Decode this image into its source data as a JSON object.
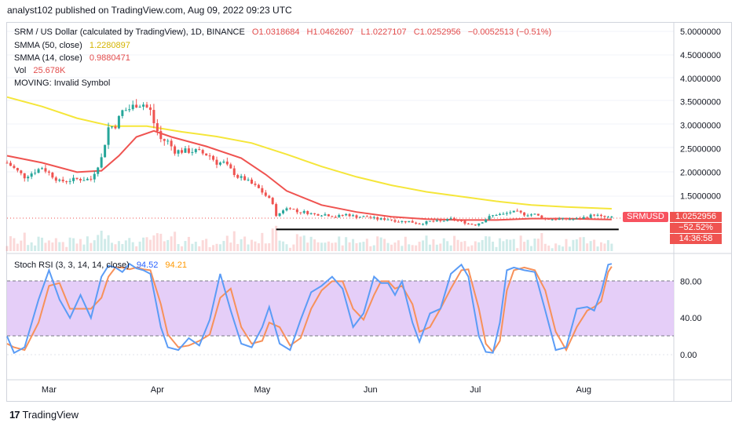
{
  "header": {
    "publisher": "analyst102 published on TradingView.com, Aug 09, 2022 09:23 UTC"
  },
  "legend": {
    "title": "SRM / US Dollar (calculated by TradingView), 1D, BINANCE",
    "open": "O1.0318684",
    "high": "H1.0462607",
    "low": "L1.0227107",
    "close": "C1.0252956",
    "change": "−0.0052513 (−0.51%)",
    "sma50_label": "SMMA (50, close)",
    "sma50_value": "1.2280897",
    "sma14_label": "SMMA (14, close)",
    "sma14_value": "0.9880471",
    "vol_label": "Vol",
    "vol_value": "25.678K",
    "moving_label": "MOVING: Invalid Symbol"
  },
  "stoch": {
    "label": "Stoch RSI (3, 3, 14, 14, close)",
    "k_value": "94.52",
    "d_value": "94.21"
  },
  "price_tag": {
    "symbol": "SRMUSD",
    "price": "1.0252956",
    "change": "−52.52%",
    "countdown": "14:36:58"
  },
  "footer": {
    "brand": "TradingView",
    "logo_text": "17"
  },
  "colors": {
    "up": "#26a69a",
    "down": "#ef5350",
    "sma50": "#f5e63a",
    "sma14": "#ef5350",
    "stoch_k": "#5b9cf6",
    "stoch_d": "#f7915a",
    "band": "#e1c5f7"
  },
  "chart_data": [
    {
      "type": "line",
      "title": "SRM / US Dollar (calculated by TradingView), 1D, BINANCE",
      "y_ticks": [
        "5.0000000",
        "4.5000000",
        "4.0000000",
        "3.5000000",
        "3.0000000",
        "2.5000000",
        "2.0000000",
        "1.5000000"
      ],
      "ylim": [
        0.35,
        5.1
      ],
      "x_ticks": [
        "Mar",
        "Apr",
        "May",
        "Jun",
        "Jul",
        "Aug"
      ],
      "x_tick_days": [
        12,
        43,
        73,
        104,
        134,
        165
      ],
      "series": [
        {
          "name": "Price",
          "points": [
            [
              0,
              2.2
            ],
            [
              5,
              1.9
            ],
            [
              10,
              2.1
            ],
            [
              15,
              1.8
            ],
            [
              20,
              1.85
            ],
            [
              24,
              1.85
            ],
            [
              27,
              2.3
            ],
            [
              29,
              2.95
            ],
            [
              31,
              3.0
            ],
            [
              33,
              3.3
            ],
            [
              35,
              3.35
            ],
            [
              37,
              3.45
            ],
            [
              39,
              3.45
            ],
            [
              41,
              3.3
            ],
            [
              42,
              3.05
            ],
            [
              44,
              2.7
            ],
            [
              46,
              2.65
            ],
            [
              48,
              2.45
            ],
            [
              50,
              2.45
            ],
            [
              52,
              2.45
            ],
            [
              54,
              2.45
            ],
            [
              56,
              2.4
            ],
            [
              58,
              2.35
            ],
            [
              60,
              2.2
            ],
            [
              62,
              2.2
            ],
            [
              64,
              2.05
            ],
            [
              66,
              1.9
            ],
            [
              68,
              1.85
            ],
            [
              70,
              1.75
            ],
            [
              72,
              1.65
            ],
            [
              74,
              1.5
            ],
            [
              76,
              1.35
            ],
            [
              77,
              1.05
            ],
            [
              79,
              1.2
            ],
            [
              81,
              1.25
            ],
            [
              83,
              1.15
            ],
            [
              85,
              1.15
            ],
            [
              88,
              1.1
            ],
            [
              91,
              1.1
            ],
            [
              94,
              1.05
            ],
            [
              97,
              1.1
            ],
            [
              100,
              1.05
            ],
            [
              103,
              1.05
            ],
            [
              106,
              1.0
            ],
            [
              109,
              1.0
            ],
            [
              112,
              0.95
            ],
            [
              115,
              0.95
            ],
            [
              118,
              0.9
            ],
            [
              121,
              0.95
            ],
            [
              124,
              0.95
            ],
            [
              127,
              1.0
            ],
            [
              130,
              0.95
            ],
            [
              132,
              0.9
            ],
            [
              134,
              0.88
            ],
            [
              136,
              0.95
            ],
            [
              138,
              1.05
            ],
            [
              140,
              1.1
            ],
            [
              142,
              1.1
            ],
            [
              144,
              1.15
            ],
            [
              146,
              1.15
            ],
            [
              148,
              1.1
            ],
            [
              151,
              1.1
            ],
            [
              154,
              1.0
            ],
            [
              157,
              1.0
            ],
            [
              160,
              1.0
            ],
            [
              163,
              1.0
            ],
            [
              166,
              1.05
            ],
            [
              168,
              1.1
            ],
            [
              170,
              1.05
            ],
            [
              173,
              1.03
            ]
          ]
        },
        {
          "name": "SMMA (50, close)",
          "points": [
            [
              0,
              3.6
            ],
            [
              10,
              3.4
            ],
            [
              20,
              3.15
            ],
            [
              30,
              2.98
            ],
            [
              40,
              2.98
            ],
            [
              50,
              2.86
            ],
            [
              60,
              2.76
            ],
            [
              70,
              2.62
            ],
            [
              80,
              2.38
            ],
            [
              90,
              2.12
            ],
            [
              100,
              1.9
            ],
            [
              110,
              1.72
            ],
            [
              120,
              1.58
            ],
            [
              130,
              1.48
            ],
            [
              140,
              1.38
            ],
            [
              150,
              1.3
            ],
            [
              160,
              1.26
            ],
            [
              173,
              1.22
            ]
          ]
        },
        {
          "name": "SMMA (14, close)",
          "points": [
            [
              0,
              2.35
            ],
            [
              10,
              2.2
            ],
            [
              20,
              2.0
            ],
            [
              27,
              2.03
            ],
            [
              32,
              2.35
            ],
            [
              37,
              2.75
            ],
            [
              42,
              2.88
            ],
            [
              47,
              2.75
            ],
            [
              57,
              2.55
            ],
            [
              67,
              2.3
            ],
            [
              74,
              1.95
            ],
            [
              80,
              1.6
            ],
            [
              90,
              1.3
            ],
            [
              100,
              1.15
            ],
            [
              110,
              1.05
            ],
            [
              120,
              1.0
            ],
            [
              130,
              0.98
            ],
            [
              140,
              0.98
            ],
            [
              150,
              1.01
            ],
            [
              160,
              1.01
            ],
            [
              173,
              0.99
            ]
          ]
        },
        {
          "name": "Support",
          "points": [
            [
              77,
              0.78
            ],
            [
              175,
              0.78
            ]
          ]
        }
      ]
    },
    {
      "type": "line",
      "title": "Stoch RSI (3, 3, 14, 14, close)",
      "y_ticks": [
        "80.00",
        "40.00",
        "0.00"
      ],
      "ylim": [
        -10,
        110
      ],
      "band": [
        20,
        80
      ],
      "series": [
        {
          "name": "%K",
          "points": [
            [
              0,
              20
            ],
            [
              2,
              2
            ],
            [
              5,
              8
            ],
            [
              9,
              60
            ],
            [
              12,
              92
            ],
            [
              15,
              60
            ],
            [
              18,
              40
            ],
            [
              21,
              65
            ],
            [
              24,
              40
            ],
            [
              27,
              85
            ],
            [
              29,
              97
            ],
            [
              31,
              95
            ],
            [
              33,
              90
            ],
            [
              35,
              99
            ],
            [
              37,
              94
            ],
            [
              39,
              92
            ],
            [
              41,
              88
            ],
            [
              44,
              30
            ],
            [
              46,
              8
            ],
            [
              49,
              5
            ],
            [
              52,
              18
            ],
            [
              55,
              10
            ],
            [
              58,
              38
            ],
            [
              61,
              88
            ],
            [
              64,
              48
            ],
            [
              67,
              12
            ],
            [
              70,
              8
            ],
            [
              73,
              30
            ],
            [
              75,
              52
            ],
            [
              78,
              12
            ],
            [
              81,
              5
            ],
            [
              84,
              38
            ],
            [
              87,
              68
            ],
            [
              90,
              75
            ],
            [
              93,
              85
            ],
            [
              96,
              72
            ],
            [
              99,
              30
            ],
            [
              102,
              45
            ],
            [
              105,
              85
            ],
            [
              107,
              78
            ],
            [
              109,
              78
            ],
            [
              111,
              65
            ],
            [
              113,
              80
            ],
            [
              116,
              35
            ],
            [
              118,
              14
            ],
            [
              121,
              45
            ],
            [
              124,
              50
            ],
            [
              127,
              88
            ],
            [
              130,
              98
            ],
            [
              132,
              85
            ],
            [
              135,
              20
            ],
            [
              137,
              3
            ],
            [
              139,
              2
            ],
            [
              141,
              35
            ],
            [
              143,
              92
            ],
            [
              145,
              95
            ],
            [
              148,
              92
            ],
            [
              151,
              90
            ],
            [
              154,
              48
            ],
            [
              157,
              5
            ],
            [
              160,
              8
            ],
            [
              163,
              50
            ],
            [
              166,
              52
            ],
            [
              168,
              48
            ],
            [
              170,
              68
            ],
            [
              172,
              98
            ],
            [
              173,
              99
            ]
          ]
        },
        {
          "name": "%D",
          "points": [
            [
              0,
              12
            ],
            [
              2,
              8
            ],
            [
              5,
              5
            ],
            [
              9,
              35
            ],
            [
              12,
              75
            ],
            [
              15,
              78
            ],
            [
              18,
              50
            ],
            [
              21,
              50
            ],
            [
              24,
              50
            ],
            [
              27,
              62
            ],
            [
              29,
              85
            ],
            [
              31,
              95
            ],
            [
              33,
              95
            ],
            [
              35,
              93
            ],
            [
              37,
              95
            ],
            [
              39,
              93
            ],
            [
              41,
              92
            ],
            [
              44,
              55
            ],
            [
              46,
              22
            ],
            [
              49,
              8
            ],
            [
              52,
              10
            ],
            [
              55,
              15
            ],
            [
              58,
              22
            ],
            [
              61,
              62
            ],
            [
              64,
              72
            ],
            [
              67,
              30
            ],
            [
              70,
              12
            ],
            [
              73,
              15
            ],
            [
              75,
              35
            ],
            [
              78,
              30
            ],
            [
              81,
              10
            ],
            [
              84,
              18
            ],
            [
              87,
              50
            ],
            [
              90,
              70
            ],
            [
              93,
              80
            ],
            [
              96,
              80
            ],
            [
              99,
              50
            ],
            [
              102,
              38
            ],
            [
              105,
              65
            ],
            [
              107,
              80
            ],
            [
              109,
              80
            ],
            [
              111,
              72
            ],
            [
              113,
              75
            ],
            [
              116,
              55
            ],
            [
              118,
              25
            ],
            [
              121,
              30
            ],
            [
              124,
              50
            ],
            [
              127,
              72
            ],
            [
              130,
              92
            ],
            [
              132,
              93
            ],
            [
              135,
              50
            ],
            [
              137,
              12
            ],
            [
              139,
              3
            ],
            [
              141,
              15
            ],
            [
              143,
              70
            ],
            [
              145,
              92
            ],
            [
              148,
              95
            ],
            [
              151,
              92
            ],
            [
              154,
              70
            ],
            [
              157,
              25
            ],
            [
              160,
              5
            ],
            [
              163,
              30
            ],
            [
              166,
              48
            ],
            [
              168,
              52
            ],
            [
              170,
              58
            ],
            [
              172,
              90
            ],
            [
              173,
              96
            ]
          ]
        }
      ]
    }
  ]
}
